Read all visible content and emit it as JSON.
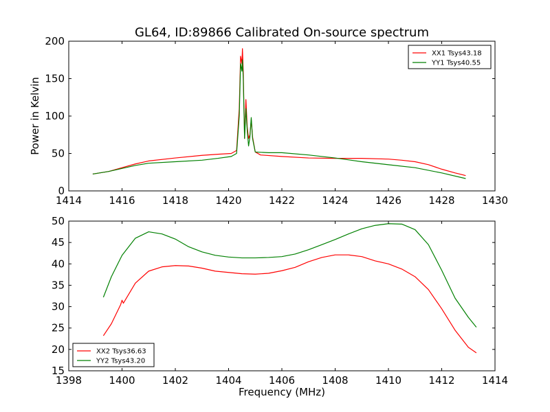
{
  "chart_data": [
    {
      "type": "line",
      "title": "GL64, ID:89866 Calibrated On-source spectrum",
      "xlabel": "",
      "ylabel": "Power in Kelvin",
      "xlim": [
        1414,
        1430
      ],
      "ylim": [
        0,
        200
      ],
      "xticks": [
        "1414",
        "1416",
        "1418",
        "1420",
        "1422",
        "1424",
        "1426",
        "1428",
        "1430"
      ],
      "yticks": [
        "0",
        "50",
        "100",
        "150",
        "200"
      ],
      "grid": false,
      "legend_position": "top-right",
      "series": [
        {
          "name": "XX1 Tsys43.18",
          "color": "#ff0000",
          "points": [
            [
              1414.9,
              22.5
            ],
            [
              1415.5,
              26
            ],
            [
              1416,
              31
            ],
            [
              1416.5,
              36
            ],
            [
              1417,
              40
            ],
            [
              1418,
              44
            ],
            [
              1419,
              47.5
            ],
            [
              1419.6,
              49
            ],
            [
              1420.1,
              50
            ],
            [
              1420.3,
              54
            ],
            [
              1420.4,
              110
            ],
            [
              1420.45,
              180
            ],
            [
              1420.5,
              170
            ],
            [
              1420.52,
              190
            ],
            [
              1420.55,
              160
            ],
            [
              1420.6,
              70
            ],
            [
              1420.65,
              122
            ],
            [
              1420.7,
              85
            ],
            [
              1420.75,
              70
            ],
            [
              1420.8,
              75
            ],
            [
              1420.85,
              95
            ],
            [
              1420.9,
              72
            ],
            [
              1421,
              52
            ],
            [
              1421.2,
              48
            ],
            [
              1422,
              46
            ],
            [
              1423,
              44
            ],
            [
              1424,
              43.5
            ],
            [
              1425,
              43.5
            ],
            [
              1426,
              42.5
            ],
            [
              1426.5,
              41
            ],
            [
              1427,
              39
            ],
            [
              1427.5,
              35
            ],
            [
              1428,
              29
            ],
            [
              1428.5,
              24
            ],
            [
              1428.9,
              20.5
            ]
          ]
        },
        {
          "name": "YY1 Tsys40.55",
          "color": "#008000",
          "points": [
            [
              1414.9,
              22.5
            ],
            [
              1415.5,
              26
            ],
            [
              1416,
              30
            ],
            [
              1416.5,
              34
            ],
            [
              1417,
              37
            ],
            [
              1418,
              39
            ],
            [
              1419,
              41
            ],
            [
              1419.6,
              43.5
            ],
            [
              1420.1,
              46
            ],
            [
              1420.3,
              50
            ],
            [
              1420.4,
              100
            ],
            [
              1420.45,
              170
            ],
            [
              1420.5,
              160
            ],
            [
              1420.52,
              175
            ],
            [
              1420.55,
              150
            ],
            [
              1420.6,
              70
            ],
            [
              1420.65,
              110
            ],
            [
              1420.7,
              80
            ],
            [
              1420.75,
              60
            ],
            [
              1420.8,
              72
            ],
            [
              1420.85,
              98
            ],
            [
              1420.9,
              70
            ],
            [
              1421,
              52
            ],
            [
              1421.5,
              51
            ],
            [
              1422,
              51
            ],
            [
              1423,
              48
            ],
            [
              1424,
              44
            ],
            [
              1425,
              39
            ],
            [
              1426,
              35
            ],
            [
              1427,
              31
            ],
            [
              1428,
              24
            ],
            [
              1428.9,
              16.5
            ]
          ]
        }
      ]
    },
    {
      "type": "line",
      "title": "",
      "xlabel": "Frequency (MHz)",
      "ylabel": "",
      "xlim": [
        1398,
        1414
      ],
      "ylim": [
        15,
        50
      ],
      "xticks": [
        "1398",
        "1400",
        "1402",
        "1404",
        "1406",
        "1408",
        "1410",
        "1412",
        "1414"
      ],
      "yticks": [
        "15",
        "20",
        "25",
        "30",
        "35",
        "40",
        "45",
        "50"
      ],
      "grid": false,
      "legend_position": "bottom-left",
      "series": [
        {
          "name": "XX2 Tsys36.63",
          "color": "#ff0000",
          "points": [
            [
              1399.3,
              23.2
            ],
            [
              1399.6,
              26
            ],
            [
              1399.95,
              30.5
            ],
            [
              1400,
              31.5
            ],
            [
              1400.05,
              30.8
            ],
            [
              1400.5,
              35.5
            ],
            [
              1401,
              38.3
            ],
            [
              1401.5,
              39.3
            ],
            [
              1402,
              39.6
            ],
            [
              1402.5,
              39.5
            ],
            [
              1403,
              39
            ],
            [
              1403.5,
              38.3
            ],
            [
              1404,
              38
            ],
            [
              1404.5,
              37.7
            ],
            [
              1405,
              37.6
            ],
            [
              1405.5,
              37.8
            ],
            [
              1406,
              38.4
            ],
            [
              1406.5,
              39.2
            ],
            [
              1407,
              40.5
            ],
            [
              1407.5,
              41.5
            ],
            [
              1408,
              42.1
            ],
            [
              1408.5,
              42.1
            ],
            [
              1409,
              41.7
            ],
            [
              1409.5,
              40.7
            ],
            [
              1410,
              40
            ],
            [
              1410.5,
              38.8
            ],
            [
              1411,
              37
            ],
            [
              1411.5,
              34
            ],
            [
              1412,
              29.5
            ],
            [
              1412.5,
              24.5
            ],
            [
              1413,
              20.5
            ],
            [
              1413.3,
              19.2
            ]
          ]
        },
        {
          "name": "YY2 Tsys43.20",
          "color": "#008000",
          "points": [
            [
              1399.3,
              32.2
            ],
            [
              1399.6,
              37
            ],
            [
              1400,
              42
            ],
            [
              1400.5,
              46
            ],
            [
              1401,
              47.5
            ],
            [
              1401.5,
              47
            ],
            [
              1402,
              45.8
            ],
            [
              1402.5,
              44
            ],
            [
              1403,
              42.8
            ],
            [
              1403.5,
              42
            ],
            [
              1404,
              41.6
            ],
            [
              1404.5,
              41.4
            ],
            [
              1405,
              41.4
            ],
            [
              1405.5,
              41.5
            ],
            [
              1406,
              41.7
            ],
            [
              1406.5,
              42.3
            ],
            [
              1407,
              43.3
            ],
            [
              1407.5,
              44.5
            ],
            [
              1408,
              45.7
            ],
            [
              1408.5,
              47
            ],
            [
              1409,
              48.2
            ],
            [
              1409.5,
              49
            ],
            [
              1410,
              49.4
            ],
            [
              1410.5,
              49.3
            ],
            [
              1411,
              48
            ],
            [
              1411.5,
              44.5
            ],
            [
              1412,
              38.5
            ],
            [
              1412.5,
              32
            ],
            [
              1413,
              27.5
            ],
            [
              1413.3,
              25.2
            ]
          ]
        }
      ]
    }
  ]
}
